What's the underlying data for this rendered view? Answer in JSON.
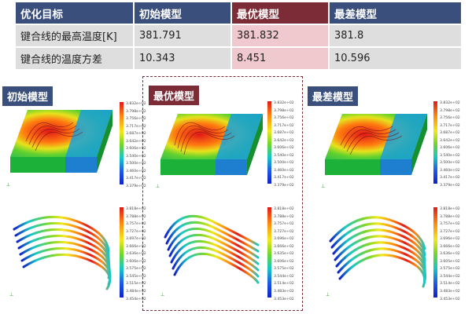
{
  "table": {
    "headers": [
      "优化目标",
      "初始模型",
      "最优模型",
      "最差模型"
    ],
    "rows": [
      {
        "label": "键合线的最高温度[K]",
        "initial": "381.791",
        "best": "381.832",
        "worst": "381.8"
      },
      {
        "label": "键合线的温度方差",
        "initial": "10.343",
        "best": "8.451",
        "worst": "10.596"
      }
    ]
  },
  "panels": {
    "initial_label": "初始模型",
    "best_label": "最优模型",
    "worst_label": "最差模型"
  },
  "legends": {
    "initial_top": [
      "3.832e+02",
      "3.798e+02",
      "3.756e+02",
      "3.717e+02",
      "3.687e+02",
      "3.642e+02",
      "3.606e+02",
      "3.540e+02",
      "3.500e+02",
      "3.460e+02",
      "3.417e+02",
      "3.379e+02"
    ],
    "best_top": [
      "3.832e+02",
      "3.798e+02",
      "3.756e+02",
      "3.717e+02",
      "3.687e+02",
      "3.642e+02",
      "3.606e+02",
      "3.540e+02",
      "3.500e+02",
      "3.460e+02",
      "3.417e+02",
      "3.379e+02"
    ],
    "worst_top": [
      "3.832e+02",
      "3.798e+02",
      "3.756e+02",
      "3.717e+02",
      "3.687e+02",
      "3.642e+02",
      "3.606e+02",
      "3.540e+02",
      "3.500e+02",
      "3.460e+02",
      "3.417e+02",
      "3.379e+02"
    ],
    "initial_bottom": [
      "3.818e+02",
      "3.788e+02",
      "3.757e+02",
      "3.727e+02",
      "3.697e+02",
      "3.666e+02",
      "3.636e+02",
      "3.606e+02",
      "3.575e+02",
      "3.545e+02",
      "3.515e+02",
      "3.484e+02",
      "3.454e+02"
    ],
    "best_bottom": [
      "3.818e+02",
      "3.788e+02",
      "3.757e+02",
      "3.727e+02",
      "3.696e+02",
      "3.666e+02",
      "3.635e+02",
      "3.606e+02",
      "3.575e+02",
      "3.544e+02",
      "3.514e+02",
      "3.483e+02",
      "3.453e+02"
    ],
    "worst_bottom": [
      "3.818e+02",
      "3.788e+02",
      "3.757e+02",
      "3.727e+02",
      "3.696e+02",
      "3.666e+02",
      "3.636e+02",
      "3.605e+02",
      "3.575e+02",
      "3.544e+02",
      "3.514e+02",
      "3.483e+02",
      "3.453e+02"
    ]
  },
  "colors": {
    "header": "#3a4f7c",
    "best_header": "#7b2c36",
    "best_cell": "#efc9cd",
    "cell": "#dedede"
  }
}
